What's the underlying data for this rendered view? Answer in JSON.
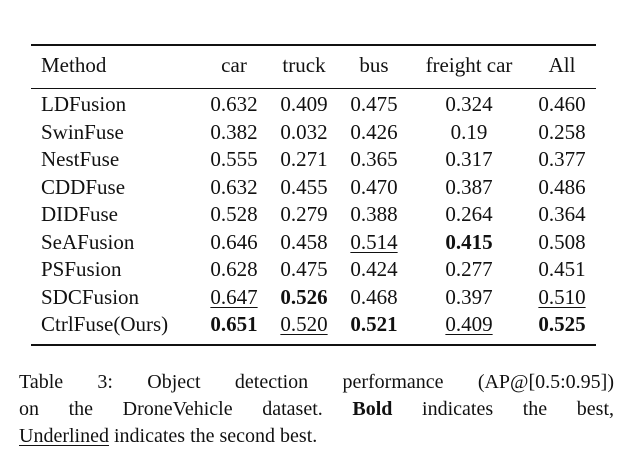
{
  "table": {
    "headers": {
      "method": "Method",
      "car": "car",
      "truck": "truck",
      "bus": "bus",
      "freight_car": "freight car",
      "all": "All"
    },
    "rows": [
      {
        "method": "LDFusion",
        "car": "0.632",
        "truck": "0.409",
        "bus": "0.475",
        "freight_car": "0.324",
        "all": "0.460"
      },
      {
        "method": "SwinFuse",
        "car": "0.382",
        "truck": "0.032",
        "bus": "0.426",
        "freight_car": "0.19",
        "all": "0.258"
      },
      {
        "method": "NestFuse",
        "car": "0.555",
        "truck": "0.271",
        "bus": "0.365",
        "freight_car": "0.317",
        "all": "0.377"
      },
      {
        "method": "CDDFuse",
        "car": "0.632",
        "truck": "0.455",
        "bus": "0.470",
        "freight_car": "0.387",
        "all": "0.486"
      },
      {
        "method": "DIDFuse",
        "car": "0.528",
        "truck": "0.279",
        "bus": "0.388",
        "freight_car": "0.264",
        "all": "0.364"
      },
      {
        "method": "SeAFusion",
        "car": "0.646",
        "truck": "0.458",
        "bus": "0.514",
        "freight_car": "0.415",
        "all": "0.508"
      },
      {
        "method": "PSFusion",
        "car": "0.628",
        "truck": "0.475",
        "bus": "0.424",
        "freight_car": "0.277",
        "all": "0.451"
      },
      {
        "method": "SDCFusion",
        "car": "0.647",
        "truck": "0.526",
        "bus": "0.468",
        "freight_car": "0.397",
        "all": "0.510"
      },
      {
        "method": "CtrlFuse(Ours)",
        "car": "0.651",
        "truck": "0.520",
        "bus": "0.521",
        "freight_car": "0.409",
        "all": "0.525"
      }
    ],
    "emphasis": {
      "bold": [
        [
          5,
          "freight_car"
        ],
        [
          7,
          "truck"
        ],
        [
          8,
          "car"
        ],
        [
          8,
          "bus"
        ],
        [
          8,
          "all"
        ]
      ],
      "underline": [
        [
          5,
          "bus"
        ],
        [
          7,
          "car"
        ],
        [
          7,
          "all"
        ],
        [
          8,
          "truck"
        ],
        [
          8,
          "freight_car"
        ]
      ]
    }
  },
  "caption": {
    "line1": "Table 3: Object detection performance (AP@[0.5:0.95])",
    "line2_pre": "on the DroneVehicle dataset.",
    "line2_bold": "Bold",
    "line2_post": "indicates the best,",
    "line3_underlined": "Underlined",
    "line3_post": "indicates the second best."
  }
}
